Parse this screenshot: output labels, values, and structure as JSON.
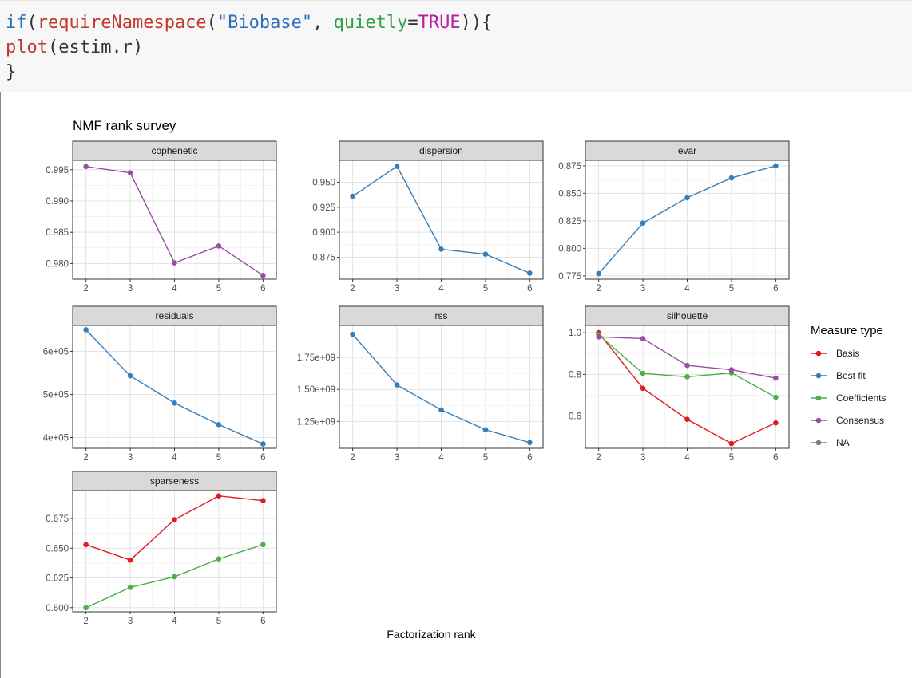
{
  "code": {
    "lines": [
      [
        {
          "t": "if",
          "c": "kw"
        },
        {
          "t": "(",
          "c": ""
        },
        {
          "t": "requireNamespace",
          "c": "fn"
        },
        {
          "t": "(",
          "c": ""
        },
        {
          "t": "\"Biobase\"",
          "c": "str"
        },
        {
          "t": ", ",
          "c": ""
        },
        {
          "t": "quietly",
          "c": "arg"
        },
        {
          "t": "=",
          "c": ""
        },
        {
          "t": "TRUE",
          "c": "lit"
        },
        {
          "t": ")){",
          "c": ""
        }
      ],
      [
        {
          "t": "plot",
          "c": "fn"
        },
        {
          "t": "(estim.r)",
          "c": ""
        }
      ],
      [
        {
          "t": "}",
          "c": ""
        }
      ]
    ]
  },
  "colors": {
    "Basis": "#e41a1c",
    "Best fit": "#377eb8",
    "Coefficients": "#4daf4a",
    "Consensus": "#984ea3",
    "NA": "#7f7f7f"
  },
  "chart_data": {
    "type": "line",
    "title": "NMF rank survey",
    "xlabel": "Factorization rank",
    "ylabel": "",
    "x": [
      2,
      3,
      4,
      5,
      6
    ],
    "legend": {
      "title": "Measure type",
      "placement": "right",
      "entries": [
        "Basis",
        "Best fit",
        "Coefficients",
        "Consensus",
        "NA"
      ]
    },
    "panels": [
      {
        "name": "cophenetic",
        "ylim": [
          0.9775,
          0.9965
        ],
        "yticks": [
          0.98,
          0.985,
          0.99,
          0.995
        ],
        "ytick_labels": [
          "0.980",
          "0.985",
          "0.990",
          "0.995"
        ],
        "series": [
          {
            "type": "Consensus",
            "values": [
              0.9955,
              0.9945,
              0.9801,
              0.9828,
              0.9781
            ]
          }
        ]
      },
      {
        "name": "dispersion",
        "ylim": [
          0.853,
          0.972
        ],
        "yticks": [
          0.875,
          0.9,
          0.925,
          0.95
        ],
        "ytick_labels": [
          "0.875",
          "0.900",
          "0.925",
          "0.950"
        ],
        "series": [
          {
            "type": "Best fit",
            "values": [
              0.936,
              0.966,
              0.883,
              0.878,
              0.859
            ]
          }
        ]
      },
      {
        "name": "evar",
        "ylim": [
          0.772,
          0.88
        ],
        "yticks": [
          0.775,
          0.8,
          0.825,
          0.85,
          0.875
        ],
        "ytick_labels": [
          "0.775",
          "0.800",
          "0.825",
          "0.850",
          "0.875"
        ],
        "series": [
          {
            "type": "Best fit",
            "values": [
              0.777,
              0.823,
              0.846,
              0.864,
              0.875
            ]
          }
        ]
      },
      {
        "name": "residuals",
        "ylim": [
          375000,
          660000
        ],
        "yticks": [
          400000,
          500000,
          600000
        ],
        "ytick_labels": [
          "4e+05",
          "5e+05",
          "6e+05"
        ],
        "series": [
          {
            "type": "Best fit",
            "values": [
              650000,
              543000,
              480000,
              430000,
              385000
            ]
          }
        ]
      },
      {
        "name": "rss",
        "ylim": [
          1040000000,
          2000000000
        ],
        "yticks": [
          1250000000,
          1500000000,
          1750000000
        ],
        "ytick_labels": [
          "1.25e+09",
          "1.50e+09",
          "1.75e+09"
        ],
        "series": [
          {
            "type": "Best fit",
            "values": [
              1930000000,
              1535000000,
              1340000000,
              1185000000,
              1085000000
            ]
          }
        ]
      },
      {
        "name": "silhouette",
        "ylim": [
          0.445,
          1.035
        ],
        "yticks": [
          0.6,
          0.8,
          1.0
        ],
        "ytick_labels": [
          "0.6",
          "0.8",
          "1.0"
        ],
        "series": [
          {
            "type": "Basis",
            "values": [
              1.0,
              0.733,
              0.584,
              0.468,
              0.567
            ]
          },
          {
            "type": "Coefficients",
            "values": [
              0.99,
              0.805,
              0.788,
              0.807,
              0.69
            ]
          },
          {
            "type": "Consensus",
            "values": [
              0.98,
              0.972,
              0.843,
              0.822,
              0.782
            ]
          }
        ]
      },
      {
        "name": "sparseness",
        "ylim": [
          0.5965,
          0.6985
        ],
        "yticks": [
          0.6,
          0.625,
          0.65,
          0.675
        ],
        "ytick_labels": [
          "0.600",
          "0.625",
          "0.650",
          "0.675"
        ],
        "series": [
          {
            "type": "Basis",
            "values": [
              0.653,
              0.64,
              0.674,
              0.694,
              0.69
            ]
          },
          {
            "type": "Coefficients",
            "values": [
              0.6,
              0.617,
              0.626,
              0.641,
              0.653
            ]
          }
        ]
      }
    ]
  }
}
